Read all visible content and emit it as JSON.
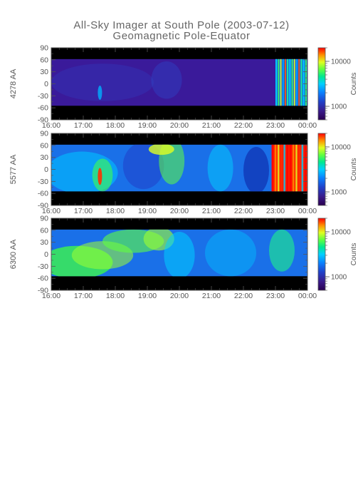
{
  "title": "All-Sky Imager at South Pole (2003-07-12)",
  "subtitle": "Geomagnetic Pole-Equator",
  "chart_data": [
    {
      "type": "heatmap",
      "ylabel": "4278 AA",
      "colorbar_label": "Counts",
      "colorbar_ticks": [
        "1000",
        "10000"
      ],
      "colorbar_range": [
        500,
        20000
      ],
      "colorbar_scale": "log",
      "x_ticks": [
        "16:00",
        "17:00",
        "18:00",
        "19:00",
        "20:00",
        "21:00",
        "22:00",
        "23:00",
        "00:00"
      ],
      "y_ticks": [
        "90",
        "60",
        "30",
        "0",
        "-30",
        "-60",
        "-90"
      ],
      "ylim": [
        -90,
        90
      ],
      "data_band": [
        -55,
        62
      ]
    },
    {
      "type": "heatmap",
      "ylabel": "5577 AA",
      "colorbar_label": "Counts",
      "colorbar_ticks": [
        "1000",
        "10000"
      ],
      "colorbar_range": [
        500,
        20000
      ],
      "colorbar_scale": "log",
      "x_ticks": [
        "16:00",
        "17:00",
        "18:00",
        "19:00",
        "20:00",
        "21:00",
        "22:00",
        "23:00",
        "00:00"
      ],
      "y_ticks": [
        "90",
        "60",
        "30",
        "0",
        "-30",
        "-60",
        "-90"
      ],
      "ylim": [
        -90,
        90
      ],
      "data_band": [
        -55,
        62
      ]
    },
    {
      "type": "heatmap",
      "ylabel": "6300 AA",
      "colorbar_label": "Counts",
      "colorbar_ticks": [
        "1000",
        "10000"
      ],
      "colorbar_range": [
        500,
        20000
      ],
      "colorbar_scale": "log",
      "x_ticks": [
        "16:00",
        "17:00",
        "18:00",
        "19:00",
        "20:00",
        "21:00",
        "22:00",
        "23:00",
        "00:00"
      ],
      "y_ticks": [
        "90",
        "60",
        "30",
        "0",
        "-30",
        "-60",
        "-90"
      ],
      "ylim": [
        -90,
        90
      ],
      "data_band": [
        -55,
        62
      ]
    }
  ],
  "colors": {
    "background": "#ffffff",
    "axis": "#555555",
    "no_data": "#000000",
    "colormap": [
      "#2a0050",
      "#3a1a8a",
      "#2040c8",
      "#0a80ff",
      "#00d0ff",
      "#00e890",
      "#60ff40",
      "#e0ff20",
      "#ff9000",
      "#ff0000"
    ]
  }
}
